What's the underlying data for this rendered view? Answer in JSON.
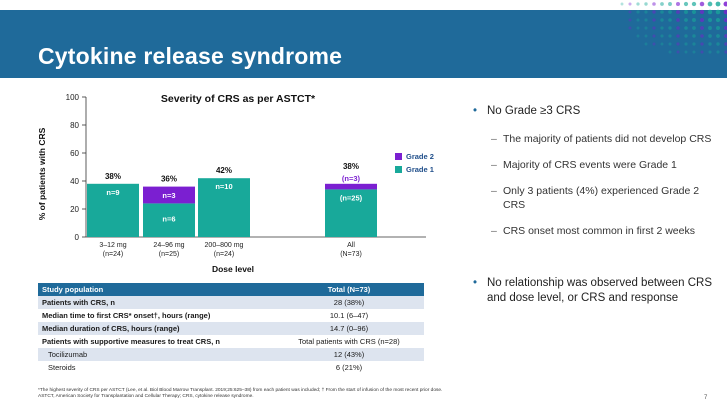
{
  "slide": {
    "title": "Cytokine release syndrome",
    "page_number": "7"
  },
  "chart_data": {
    "type": "bar",
    "title": "Severity of CRS as per ASTCT*",
    "ylabel": "% of patients with CRS",
    "xlabel": "Dose level",
    "ylim": [
      0,
      100
    ],
    "yticks": [
      0,
      20,
      40,
      60,
      80,
      100
    ],
    "grid": false,
    "legend_position": "right",
    "categories": [
      "3–12 mg\n(n=24)",
      "24–96 mg\n(n=25)",
      "200–800 mg\n(n=24)",
      "All\n(N=73)"
    ],
    "category_lines": [
      [
        "3–12 mg",
        "(n=24)"
      ],
      [
        "24–96 mg",
        "(n=25)"
      ],
      [
        "200–800 mg",
        "(n=24)"
      ],
      [
        "All",
        "(N=73)"
      ]
    ],
    "series": [
      {
        "name": "Grade 1",
        "color": "#18a99a",
        "values": [
          38,
          24,
          42,
          34
        ],
        "labels": [
          "n=9",
          "n=6",
          "n=10",
          "(n=25)"
        ]
      },
      {
        "name": "Grade 2",
        "color": "#7b1fd1",
        "values": [
          0,
          12,
          0,
          4
        ],
        "labels": [
          "",
          "n=3",
          "",
          "(n=3)"
        ]
      }
    ],
    "totals": [
      "38%",
      "36%",
      "42%",
      "38%"
    ]
  },
  "table": {
    "header": {
      "label": "Study population",
      "value": "Total (N=73)"
    },
    "rows": [
      {
        "label": "Patients with CRS, n",
        "value": "28 (38%)"
      },
      {
        "label": "Median time to first CRS* onset†, hours (range)",
        "value": "10.1 (6–47)"
      },
      {
        "label": "Median duration of CRS, hours (range)",
        "value": "14.7 (0–96)"
      },
      {
        "label": "Patients with supportive measures to treat CRS, n",
        "value": "Total patients with CRS (n=28)"
      },
      {
        "label": "Tocilizumab",
        "value": "12 (43%)"
      },
      {
        "label": "Steroids",
        "value": "6 (21%)"
      }
    ]
  },
  "bullets": {
    "b1": "No Grade ≥3 CRS",
    "s1": "The majority of patients did not develop CRS",
    "s2": "Majority of CRS events were Grade 1",
    "s3": "Only 3 patients (4%) experienced Grade 2 CRS",
    "s4": "CRS onset most common in first 2 weeks",
    "b2": "No relationship was observed between CRS and dose level, or CRS and response",
    "bullet_glyph": "•",
    "dash_glyph": "–"
  },
  "footnotes": {
    "line1": "*The highest severity of CRS per ASTCT (Lee, et al. Biol Blood Marrow Transplant. 2019;25:625–38) from each patient was included; † From the start of infusion of the most recent prior dose.",
    "line2": "ASTCT, American Society for Transplantation and Cellular Therapy; CRS, cytokine release syndrome."
  }
}
